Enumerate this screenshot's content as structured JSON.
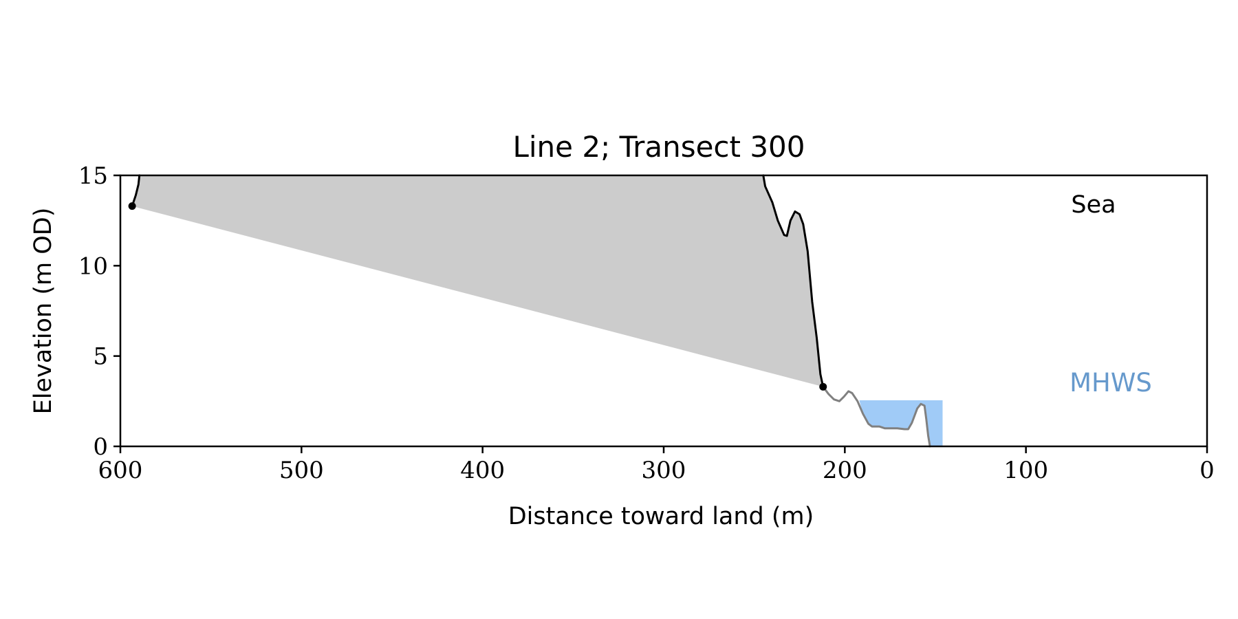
{
  "chart_data": {
    "type": "line",
    "title": "Line 2; Transect 300",
    "xlabel": "Distance toward land (m)",
    "ylabel": "Elevation (m OD)",
    "xlim": [
      600,
      0
    ],
    "ylim": [
      0,
      15
    ],
    "x_ticks": [
      600,
      500,
      400,
      300,
      200,
      100,
      0
    ],
    "y_ticks": [
      0,
      5,
      10,
      15
    ],
    "x_tick_labels": [
      "600",
      "500",
      "400",
      "300",
      "200",
      "100",
      "0"
    ],
    "y_tick_labels": [
      "0",
      "5",
      "10",
      "15"
    ],
    "grid": false,
    "annotations": [
      {
        "text": "Sea",
        "x": 75,
        "y": 13.4,
        "color": "#000000"
      },
      {
        "text": "MHWS",
        "x": 75,
        "y": 3.5,
        "color": "#6699cc"
      }
    ],
    "series": [
      {
        "role": "profile-upper",
        "color": "#000000",
        "points": [
          [
            593.5,
            13.3
          ],
          [
            591.5,
            13.9
          ],
          [
            590,
            14.5
          ],
          [
            589.5,
            15
          ]
        ]
      },
      {
        "role": "profile-cliff",
        "color": "#000000",
        "points": [
          [
            245,
            15
          ],
          [
            244,
            14.4
          ],
          [
            240,
            13.5
          ],
          [
            237,
            12.5
          ],
          [
            233.5,
            11.7
          ],
          [
            232,
            11.65
          ],
          [
            230,
            12.5
          ],
          [
            227.5,
            13.0
          ],
          [
            225,
            12.85
          ],
          [
            223,
            12.3
          ],
          [
            220.5,
            10.8
          ],
          [
            218,
            8.0
          ],
          [
            215.5,
            6.0
          ],
          [
            213.5,
            4.0
          ],
          [
            212,
            3.3
          ]
        ]
      },
      {
        "role": "profile-lower",
        "color": "#808080",
        "points": [
          [
            212,
            3.3
          ],
          [
            209,
            2.9
          ],
          [
            206,
            2.6
          ],
          [
            203,
            2.5
          ],
          [
            200.5,
            2.75
          ],
          [
            198,
            3.05
          ],
          [
            196,
            2.95
          ],
          [
            193,
            2.5
          ],
          [
            190,
            1.8
          ],
          [
            187,
            1.25
          ],
          [
            185,
            1.1
          ],
          [
            181,
            1.1
          ],
          [
            178,
            1.0
          ],
          [
            171,
            1.0
          ],
          [
            167,
            0.95
          ],
          [
            165,
            0.95
          ],
          [
            163,
            1.3
          ],
          [
            160,
            2.1
          ],
          [
            158,
            2.35
          ],
          [
            156,
            2.25
          ],
          [
            155,
            1.5
          ],
          [
            154,
            0.6
          ],
          [
            153,
            0
          ]
        ]
      }
    ],
    "shaded_area": {
      "color": "#cccccc",
      "boundary": [
        [
          593.5,
          13.3
        ],
        [
          591.5,
          13.9
        ],
        [
          590,
          14.5
        ],
        [
          589.5,
          15
        ],
        [
          245,
          15
        ],
        [
          244,
          14.4
        ],
        [
          240,
          13.5
        ],
        [
          237,
          12.5
        ],
        [
          233.5,
          11.7
        ],
        [
          232,
          11.65
        ],
        [
          230,
          12.5
        ],
        [
          227.5,
          13.0
        ],
        [
          225,
          12.85
        ],
        [
          223,
          12.3
        ],
        [
          220.5,
          10.8
        ],
        [
          218,
          8.0
        ],
        [
          215.5,
          6.0
        ],
        [
          213.5,
          4.0
        ],
        [
          212,
          3.3
        ]
      ]
    },
    "water_band": {
      "color": "#a0cbf7",
      "x_from": 192,
      "x_to": 146,
      "level": 2.55
    },
    "markers": [
      {
        "x": 593.5,
        "y": 13.3
      },
      {
        "x": 212,
        "y": 3.3
      }
    ]
  }
}
